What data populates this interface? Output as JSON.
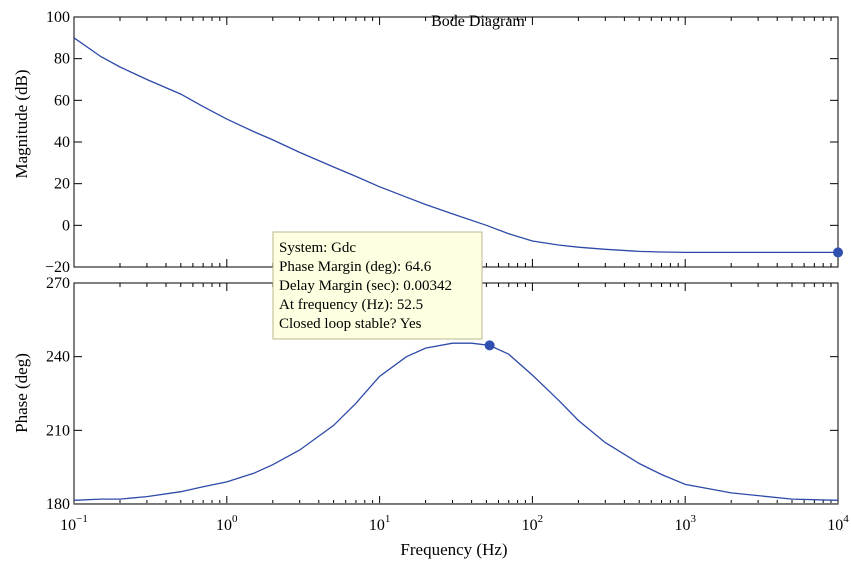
{
  "chart_data": {
    "type": "line",
    "title": "Bode Diagram",
    "xlabel": "Frequency (Hz)",
    "x_scale": "log",
    "xlim": [
      0.1,
      10000
    ],
    "x_tick_labels": [
      {
        "value": 0.1,
        "base": "10",
        "exp": "−1"
      },
      {
        "value": 1,
        "base": "10",
        "exp": "0"
      },
      {
        "value": 10,
        "base": "10",
        "exp": "1"
      },
      {
        "value": 100,
        "base": "10",
        "exp": "2"
      },
      {
        "value": 1000,
        "base": "10",
        "exp": "3"
      },
      {
        "value": 10000,
        "base": "10",
        "exp": "4"
      }
    ],
    "line_color": "#2e4aa8",
    "marker_color": "#3050b0",
    "panels": [
      {
        "id": "magnitude",
        "ylabel": "Magnitude (dB)",
        "ylim": [
          -20,
          100
        ],
        "yticks": [
          {
            "value": 100,
            "label": "100"
          },
          {
            "value": 80,
            "label": "80"
          },
          {
            "value": 60,
            "label": "60"
          },
          {
            "value": 40,
            "label": "40"
          },
          {
            "value": 20,
            "label": "20"
          },
          {
            "value": 0,
            "label": "0"
          },
          {
            "value": -20,
            "label": "−20"
          }
        ],
        "series": [
          {
            "x": [
              0.1,
              0.15,
              0.2,
              0.3,
              0.5,
              0.7,
              1,
              1.5,
              2,
              3,
              5,
              7,
              10,
              15,
              20,
              30,
              50,
              70,
              100,
              150,
              200,
              300,
              500,
              700,
              1000,
              2000,
              5000,
              10000
            ],
            "y": [
              90,
              81,
              76,
              70,
              63,
              57,
              51,
              45,
              41,
              35,
              28,
              23.5,
              18.5,
              13.5,
              10,
              5.5,
              0,
              -4,
              -7.5,
              -9.5,
              -10.5,
              -11.5,
              -12.5,
              -12.8,
              -13,
              -13,
              -13,
              -13
            ]
          }
        ],
        "marker": {
          "x": 10000,
          "y": -13
        }
      },
      {
        "id": "phase",
        "ylabel": "Phase (deg)",
        "ylim": [
          180,
          270
        ],
        "yticks": [
          {
            "value": 270,
            "label": "270"
          },
          {
            "value": 240,
            "label": "240"
          },
          {
            "value": 210,
            "label": "210"
          },
          {
            "value": 180,
            "label": "180"
          }
        ],
        "series": [
          {
            "x": [
              0.1,
              0.15,
              0.2,
              0.3,
              0.5,
              0.7,
              1,
              1.5,
              2,
              3,
              5,
              7,
              10,
              15,
              20,
              30,
              40,
              52.5,
              70,
              100,
              150,
              200,
              300,
              500,
              700,
              1000,
              2000,
              5000,
              10000
            ],
            "y": [
              181.5,
              182,
              182,
              183,
              185,
              187,
              189,
              192.5,
              196,
              202,
              212,
              221,
              232,
              240,
              243.5,
              245.5,
              245.5,
              244.6,
              241,
              232.5,
              222,
              214,
              205,
              196.5,
              192,
              188,
              184.5,
              182,
              181.5
            ]
          },
          {
            "x": [
              0.1,
              10000
            ],
            "y": [
              180.2,
              180.2
            ]
          }
        ],
        "marker": {
          "x": 52.5,
          "y": 244.6
        }
      }
    ],
    "datatip": {
      "lines": [
        "System: Gdc",
        "Phase Margin (deg): 64.6",
        "Delay Margin (sec): 0.00342",
        "At frequency (Hz): 52.5",
        "Closed loop stable? Yes"
      ],
      "background": "#ffffe1",
      "border": "#b8b890"
    }
  }
}
